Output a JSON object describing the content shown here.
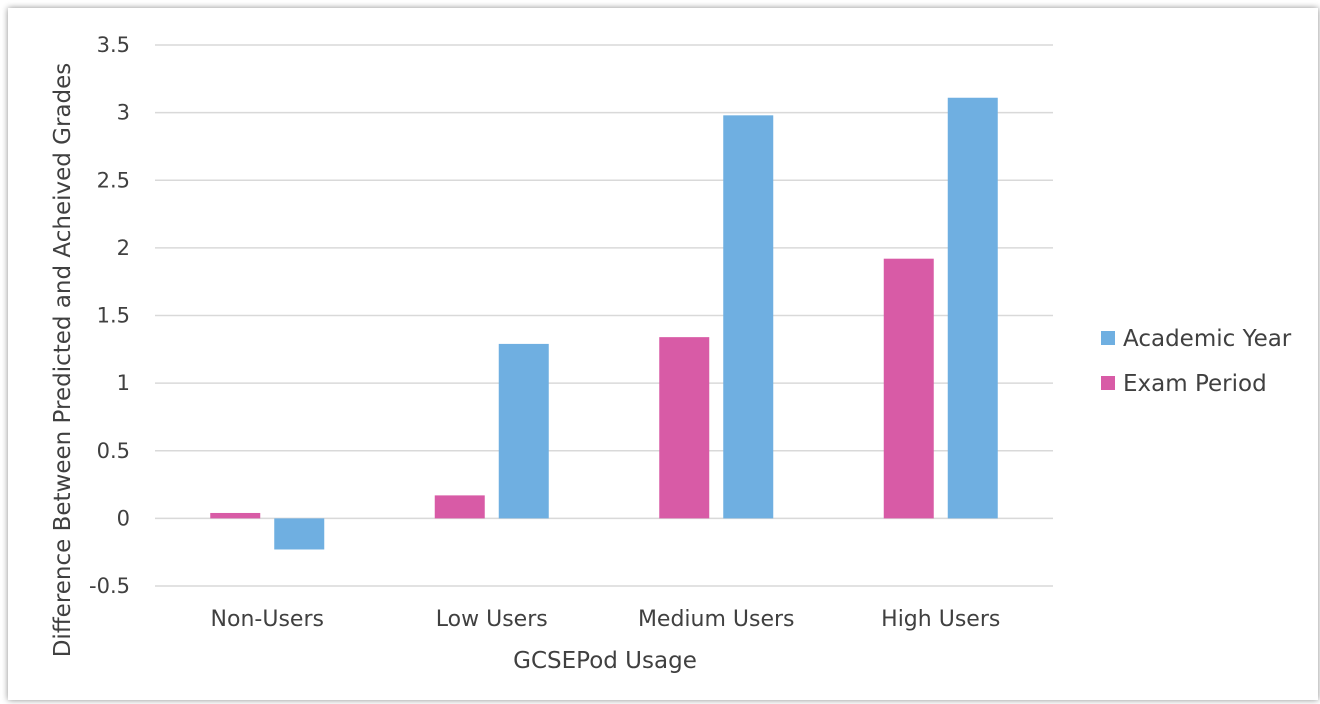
{
  "chart_data": {
    "type": "bar",
    "title": "",
    "xlabel": "GCSEPod Usage",
    "ylabel": "Difference Between Predicted and Acheived Grades",
    "categories": [
      "Non-Users",
      "Low Users",
      "Medium Users",
      "High Users"
    ],
    "series": [
      {
        "name": "Exam Period",
        "color": "#D85BA6",
        "values": [
          0.04,
          0.17,
          1.34,
          1.92
        ]
      },
      {
        "name": "Academic Year",
        "color": "#6FAFE1",
        "values": [
          -0.23,
          1.29,
          2.98,
          3.11
        ]
      }
    ],
    "ylim": [
      -0.5,
      3.5
    ],
    "yticks": [
      -0.5,
      0,
      0.5,
      1,
      1.5,
      2,
      2.5,
      3,
      3.5
    ],
    "ytick_labels": [
      "-0.5",
      "0",
      "0.5",
      "1",
      "1.5",
      "2",
      "2.5",
      "3",
      "3.5"
    ],
    "grid": true,
    "legend": {
      "position": "right",
      "entries": [
        "Academic Year",
        "Exam Period"
      ]
    }
  }
}
